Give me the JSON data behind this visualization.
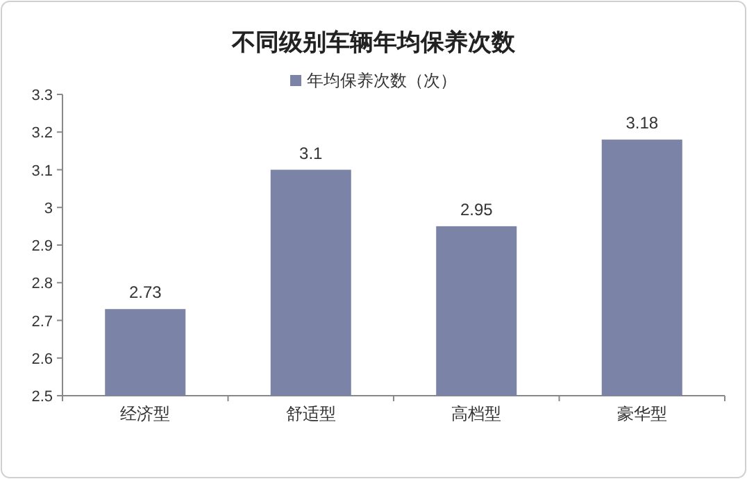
{
  "chart_data": {
    "type": "bar",
    "title": "不同级别车辆年均保养次数",
    "categories": [
      "经济型",
      "舒适型",
      "高档型",
      "豪华型"
    ],
    "series": [
      {
        "name": "年均保养次数（次）",
        "color": "#7b83a6",
        "values": [
          2.73,
          3.1,
          2.95,
          3.18
        ]
      }
    ],
    "ylim": [
      2.5,
      3.3
    ],
    "yticks": [
      2.5,
      2.6,
      2.7,
      2.8,
      2.9,
      3,
      3.1,
      3.2,
      3.3
    ],
    "data_labels": true,
    "legend": "top",
    "grid": false
  }
}
